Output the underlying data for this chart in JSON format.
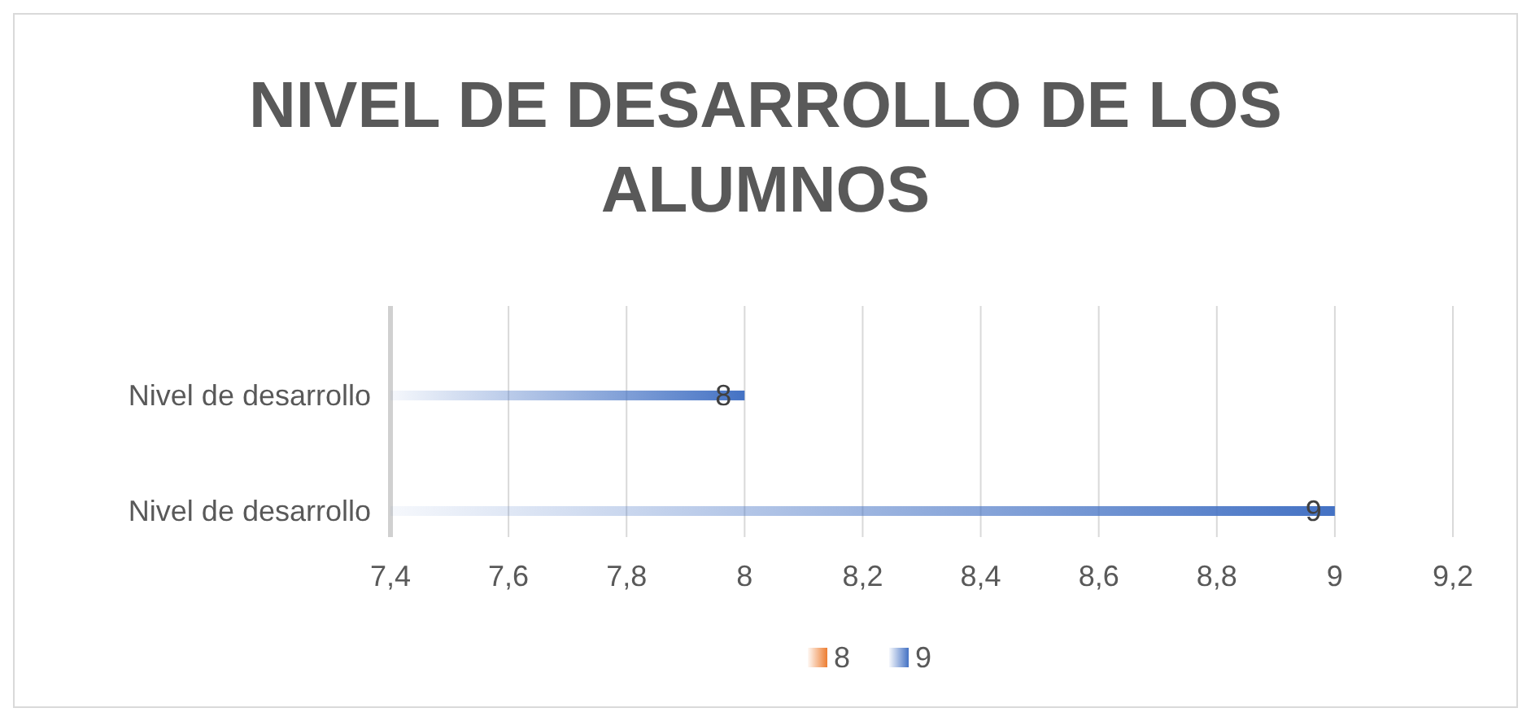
{
  "chart_data": {
    "type": "bar",
    "orientation": "horizontal",
    "title": "NIVEL DE DESARROLLO DE LOS ALUMNOS",
    "categories": [
      "Nivel de desarrollo",
      "Nivel de desarrollo"
    ],
    "series": [
      {
        "name": "8",
        "color": "#ed7d31",
        "values": [
          null,
          null
        ]
      },
      {
        "name": "9",
        "color": "#4472c4",
        "values": [
          8,
          9
        ]
      }
    ],
    "xlim": [
      7.4,
      9.2
    ],
    "xticks": [
      {
        "value": 7.4,
        "label": "7,4"
      },
      {
        "value": 7.6,
        "label": "7,6"
      },
      {
        "value": 7.8,
        "label": "7,8"
      },
      {
        "value": 8,
        "label": "8"
      },
      {
        "value": 8.2,
        "label": "8,2"
      },
      {
        "value": 8.4,
        "label": "8,4"
      },
      {
        "value": 8.6,
        "label": "8,6"
      },
      {
        "value": 8.8,
        "label": "8,8"
      },
      {
        "value": 9,
        "label": "9"
      },
      {
        "value": 9.2,
        "label": "9,2"
      }
    ],
    "grid": "x",
    "data_labels": true,
    "legend": "bottom"
  }
}
